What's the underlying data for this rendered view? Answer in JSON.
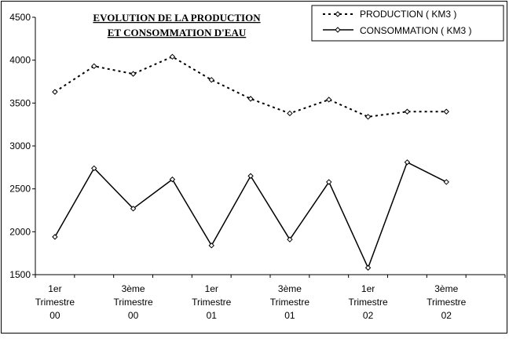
{
  "chart_data": {
    "type": "line",
    "title_lines": [
      "EVOLUTION DE LA PRODUCTION",
      "ET CONSOMMATION D'EAU"
    ],
    "x_count": 12,
    "x_tick_labels": [
      {
        "index": 0,
        "lines": [
          "1er",
          "Trimestre",
          "00"
        ]
      },
      {
        "index": 2,
        "lines": [
          "3ème",
          "Trimestre",
          "00"
        ]
      },
      {
        "index": 4,
        "lines": [
          "1er",
          "Trimestre",
          "01"
        ]
      },
      {
        "index": 6,
        "lines": [
          "3ème",
          "Trimestre",
          "01"
        ]
      },
      {
        "index": 8,
        "lines": [
          "1er",
          "Trimestre",
          "02"
        ]
      },
      {
        "index": 10,
        "lines": [
          "3ème",
          "Trimestre",
          "02"
        ]
      }
    ],
    "ylim": [
      1500,
      4500
    ],
    "y_ticks": [
      1500,
      2000,
      2500,
      3000,
      3500,
      4000,
      4500
    ],
    "series": [
      {
        "name": "PRODUCTION ( KM3 )",
        "style": "dotted",
        "values": [
          3630,
          3930,
          3840,
          4040,
          3770,
          3550,
          3380,
          3540,
          3340,
          3400,
          3400
        ]
      },
      {
        "name": "CONSOMMATION ( KM3 )",
        "style": "solid",
        "values": [
          1940,
          2740,
          2270,
          2610,
          1840,
          2650,
          1910,
          2580,
          1580,
          2810,
          2580
        ]
      }
    ],
    "legend_position": "top-right"
  }
}
